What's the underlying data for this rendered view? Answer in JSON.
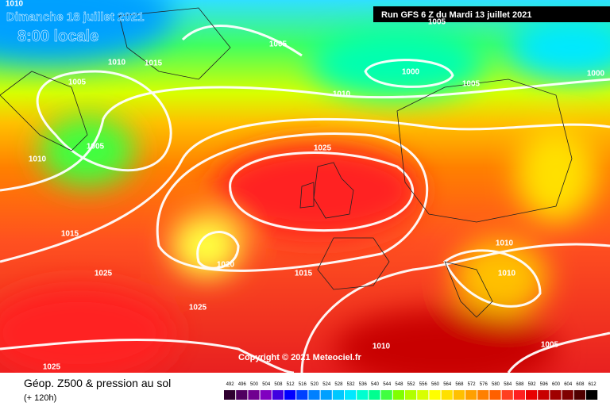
{
  "header": {
    "valid_date": "Dimanche 18 juillet 2021",
    "valid_time": "8:00 locale",
    "run": "Run GFS 6 Z du Mardi 13 juillet 2021"
  },
  "copyright": "Copyright © 2021 Meteociel.fr",
  "footer": {
    "title": "Géop. Z500 & pression au sol",
    "lead": "(+ 120h)"
  },
  "isobar_labels": [
    1010,
    1005,
    1005,
    1010,
    1015,
    1005,
    1000,
    1005,
    1000,
    1010,
    1005,
    1025,
    1010,
    1015,
    1020,
    1010,
    1025,
    1015,
    1010,
    1025,
    1010,
    1005,
    1025
  ],
  "scale": {
    "values": [
      492,
      496,
      500,
      504,
      508,
      512,
      516,
      520,
      524,
      528,
      532,
      536,
      540,
      544,
      548,
      552,
      556,
      560,
      564,
      568,
      572,
      576,
      580,
      584,
      588,
      592,
      596,
      600,
      604,
      608,
      612
    ],
    "colors": [
      "#300030",
      "#500060",
      "#700090",
      "#8000c0",
      "#4000e0",
      "#0000ff",
      "#0040ff",
      "#0080ff",
      "#00a0ff",
      "#00c8ff",
      "#00e8ff",
      "#00ffd0",
      "#00ff90",
      "#40ff40",
      "#80ff00",
      "#b0ff00",
      "#d8ff00",
      "#ffff00",
      "#ffe000",
      "#ffc000",
      "#ffa000",
      "#ff8000",
      "#ff6000",
      "#ff4020",
      "#ff2020",
      "#e80000",
      "#c80000",
      "#a00000",
      "#800000",
      "#500000",
      "#000000"
    ]
  }
}
